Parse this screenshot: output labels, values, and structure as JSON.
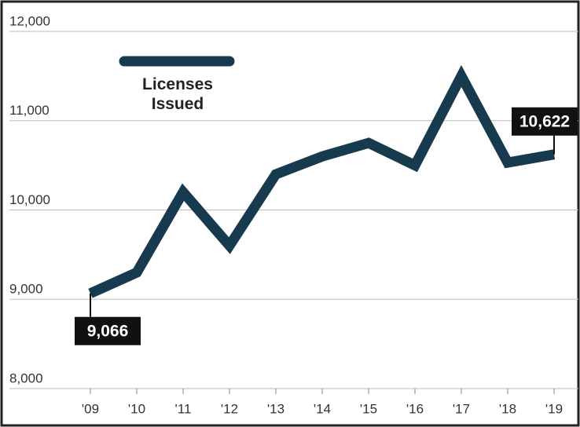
{
  "chart_data": {
    "type": "line",
    "categories": [
      "'09",
      "'10",
      "'11",
      "'12",
      "'13",
      "'14",
      "'15",
      "'16",
      "'17",
      "'18",
      "'19"
    ],
    "series": [
      {
        "name": "Licenses Issued",
        "color": "#173a4f",
        "values": [
          9066,
          9300,
          10200,
          9600,
          10400,
          10600,
          10750,
          10500,
          11500,
          10530,
          10622
        ],
        "value_labels": [
          "9,066",
          null,
          null,
          null,
          null,
          null,
          null,
          null,
          null,
          null,
          "10,622"
        ]
      }
    ],
    "ylim": [
      8000,
      12000
    ],
    "yticks": [
      {
        "value": 8000,
        "label": "8,000"
      },
      {
        "value": 9000,
        "label": "9,000"
      },
      {
        "value": 10000,
        "label": "10,000"
      },
      {
        "value": 11000,
        "label": "11,000"
      },
      {
        "value": 12000,
        "label": "12,000"
      }
    ],
    "grid": true
  }
}
